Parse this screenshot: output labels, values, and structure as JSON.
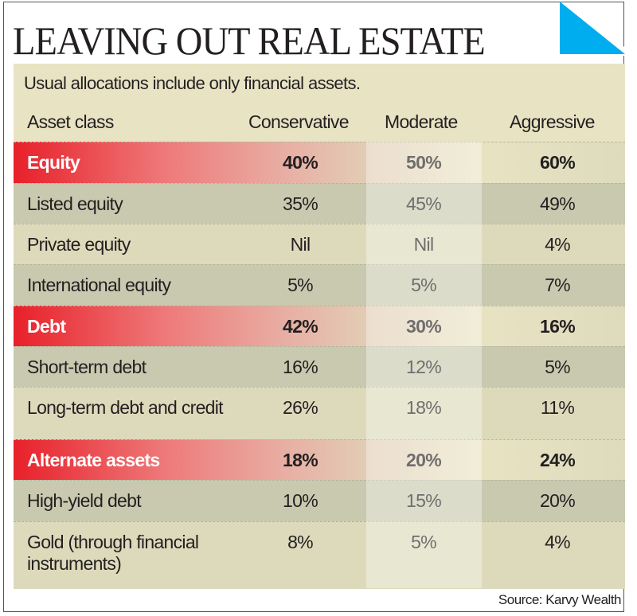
{
  "title": "LEAVING OUT REAL ESTATE",
  "subtitle": "Usual allocations include only financial assets.",
  "source": "Source: Karvy Wealth",
  "colors": {
    "accent_red": "#e8202a",
    "corner_blue": "#00aeef",
    "panel": "#e8e3c3"
  },
  "chart_data": {
    "type": "table",
    "title": "LEAVING OUT REAL ESTATE",
    "columns": [
      "Asset class",
      "Conservative",
      "Moderate",
      "Aggressive"
    ],
    "rows": [
      {
        "label": "Equity",
        "section": true,
        "values": [
          "40%",
          "50%",
          "60%"
        ]
      },
      {
        "label": "Listed equity",
        "section": false,
        "values": [
          "35%",
          "45%",
          "49%"
        ]
      },
      {
        "label": "Private equity",
        "section": false,
        "values": [
          "Nil",
          "Nil",
          "4%"
        ]
      },
      {
        "label": "International equity",
        "section": false,
        "values": [
          "5%",
          "5%",
          "7%"
        ]
      },
      {
        "label": "Debt",
        "section": true,
        "values": [
          "42%",
          "30%",
          "16%"
        ]
      },
      {
        "label": "Short-term debt",
        "section": false,
        "values": [
          "16%",
          "12%",
          "5%"
        ]
      },
      {
        "label": "Long-term debt and credit",
        "section": false,
        "values": [
          "26%",
          "18%",
          "11%"
        ]
      },
      {
        "label": "Alternate assets",
        "section": true,
        "values": [
          "18%",
          "20%",
          "24%"
        ]
      },
      {
        "label": "High-yield debt",
        "section": false,
        "values": [
          "10%",
          "15%",
          "20%"
        ]
      },
      {
        "label": "Gold (through financial instruments)",
        "section": false,
        "values": [
          "8%",
          "5%",
          "4%"
        ]
      }
    ]
  }
}
